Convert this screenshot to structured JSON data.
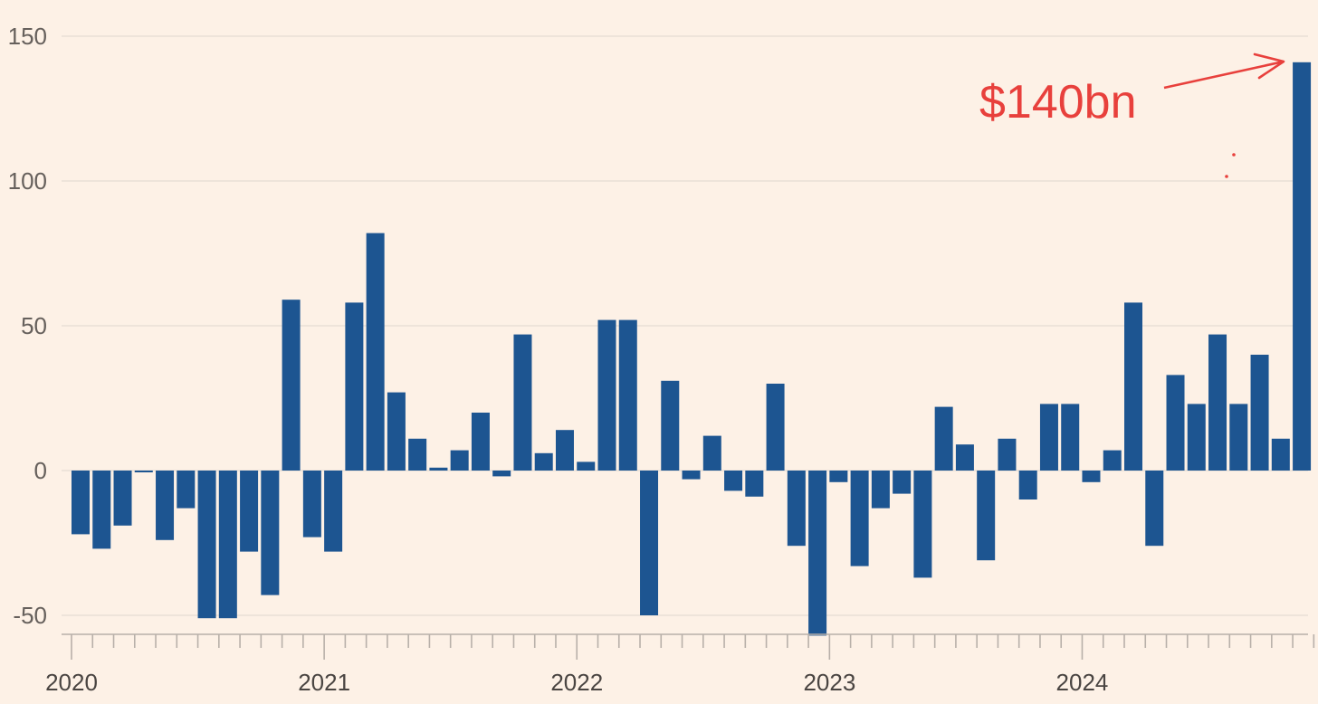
{
  "chart_data": {
    "type": "bar",
    "ylim": [
      -57,
      150
    ],
    "y_ticks": [
      -50,
      0,
      50,
      100,
      150
    ],
    "y_tick_labels": [
      "-50",
      "0",
      "50",
      "100",
      "150"
    ],
    "x_year_labels": [
      "2020",
      "2021",
      "2022",
      "2023",
      "2024"
    ],
    "grid": true,
    "annotation": {
      "text": "$140bn",
      "color": "#e8403c"
    },
    "bar_color": "#1d5591",
    "categories": [
      "2020-01",
      "2020-02",
      "2020-03",
      "2020-04",
      "2020-05",
      "2020-06",
      "2020-07",
      "2020-08",
      "2020-09",
      "2020-10",
      "2020-11",
      "2020-12",
      "2021-01",
      "2021-02",
      "2021-03",
      "2021-04",
      "2021-05",
      "2021-06",
      "2021-07",
      "2021-08",
      "2021-09",
      "2021-10",
      "2021-11",
      "2021-12",
      "2022-01",
      "2022-02",
      "2022-03",
      "2022-04",
      "2022-05",
      "2022-06",
      "2022-07",
      "2022-08",
      "2022-09",
      "2022-10",
      "2022-11",
      "2022-12",
      "2023-01",
      "2023-02",
      "2023-03",
      "2023-04",
      "2023-05",
      "2023-06",
      "2023-07",
      "2023-08",
      "2023-09",
      "2023-10",
      "2023-11",
      "2023-12",
      "2024-01",
      "2024-02",
      "2024-03",
      "2024-04",
      "2024-05",
      "2024-06",
      "2024-07",
      "2024-08",
      "2024-09",
      "2024-10",
      "2024-11",
      "2024-12"
    ],
    "values": [
      -22,
      -27,
      -19,
      -0.5,
      -24,
      -13,
      -51,
      -51,
      -28,
      -43,
      59,
      -23,
      -28,
      58,
      82,
      27,
      11,
      1,
      7,
      20,
      -2,
      47,
      6,
      14,
      3,
      52,
      52,
      -50,
      31,
      -3,
      12,
      -7,
      -9,
      30,
      -26,
      -57,
      -4,
      -33,
      -13,
      -8,
      -37,
      22,
      9,
      -31,
      11,
      -10,
      23,
      23,
      -4,
      7,
      58,
      -26,
      33,
      23,
      47,
      23,
      40,
      11,
      141,
      null
    ]
  }
}
